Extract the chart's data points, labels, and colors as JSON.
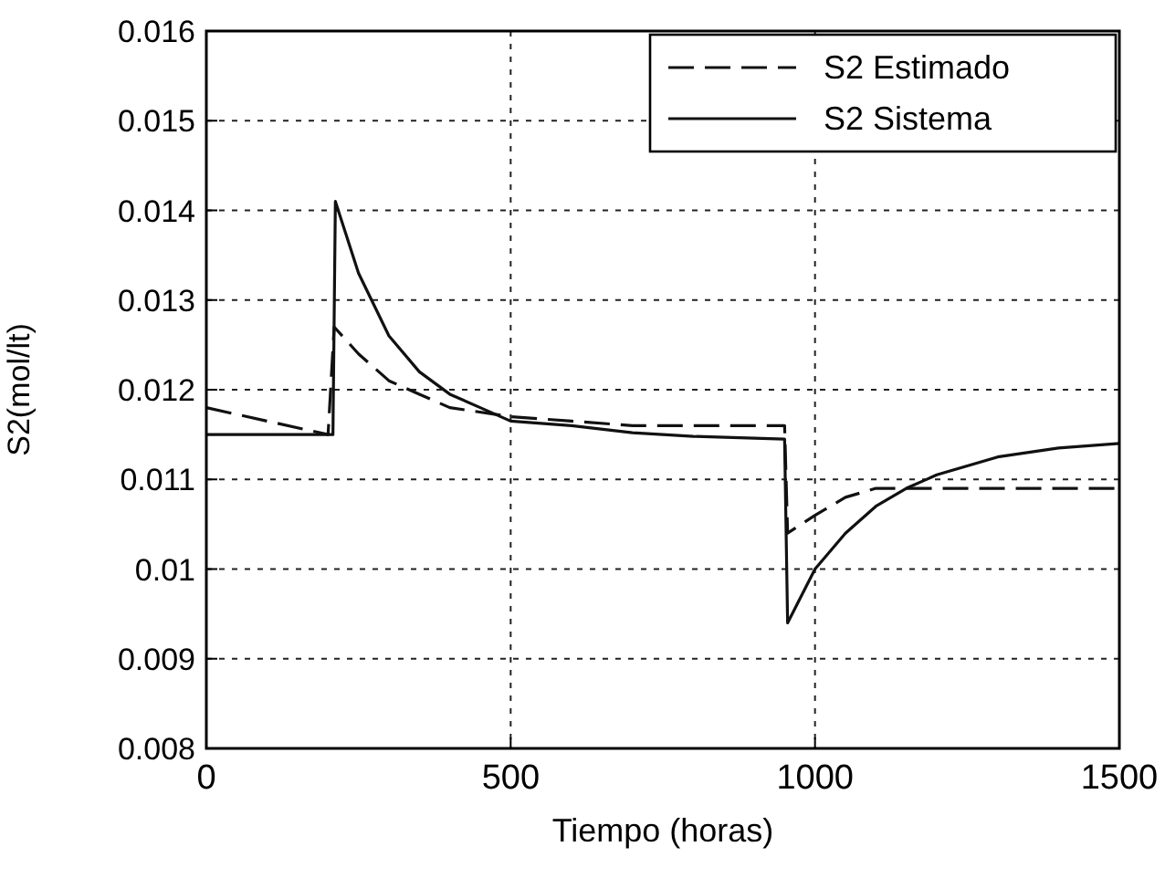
{
  "chart_data": {
    "type": "line",
    "xlabel": "Tiempo (horas)",
    "ylabel": "S2(mol/lt)",
    "xlim": [
      0,
      1500
    ],
    "xticks": [
      0,
      500,
      1000,
      1500
    ],
    "ylim": [
      0.008,
      0.016
    ],
    "yticks": [
      0.008,
      0.009,
      0.01,
      0.011,
      0.012,
      0.013,
      0.014,
      0.015,
      0.016
    ],
    "grid": true,
    "legend": "top right",
    "series": [
      {
        "name": "S2 Estimado",
        "color": "#111111",
        "line_style": "dashed",
        "x": [
          0,
          100,
          200,
          210,
          250,
          300,
          350,
          400,
          500,
          600,
          700,
          950,
          955,
          1000,
          1050,
          1100,
          1500
        ],
        "values": [
          0.0118,
          0.01165,
          0.0115,
          0.0127,
          0.0124,
          0.0121,
          0.01195,
          0.0118,
          0.0117,
          0.01165,
          0.0116,
          0.0116,
          0.0104,
          0.0106,
          0.0108,
          0.0109,
          0.0109
        ]
      },
      {
        "name": "S2 Sistema",
        "color": "#111111",
        "line_style": "solid",
        "x": [
          0,
          208,
          212,
          250,
          300,
          350,
          400,
          450,
          500,
          600,
          700,
          800,
          950,
          955,
          1000,
          1050,
          1100,
          1150,
          1200,
          1300,
          1400,
          1500
        ],
        "values": [
          0.0115,
          0.0115,
          0.0141,
          0.0133,
          0.0126,
          0.0122,
          0.01195,
          0.0118,
          0.01165,
          0.0116,
          0.01152,
          0.01148,
          0.01145,
          0.0094,
          0.01,
          0.0104,
          0.0107,
          0.0109,
          0.01105,
          0.01125,
          0.01135,
          0.0114
        ]
      }
    ]
  }
}
